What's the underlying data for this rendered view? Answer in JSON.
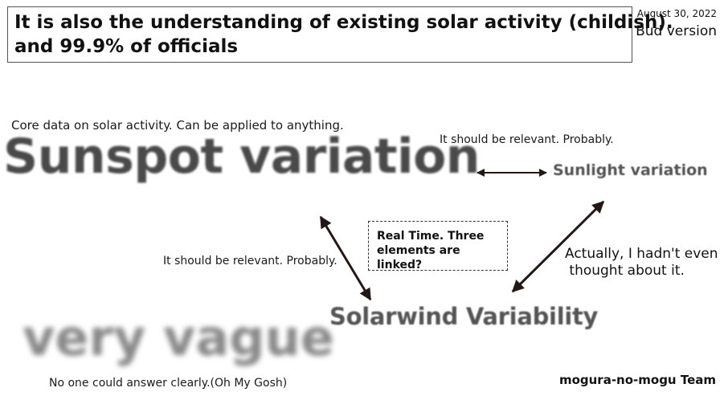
{
  "header": {
    "title_line1": "It is also the understanding of existing solar activity (childish).",
    "title_line2": "and 99.9% of officials",
    "date": "August 30, 2022",
    "version": "Bud version"
  },
  "diagram": {
    "core_note": "Core data on solar activity. Can be applied to anything.",
    "sunspot": "Sunspot variation",
    "relevant_top": "It should be relevant. Probably.",
    "sunlight": "Sunlight variation",
    "realtime": "Real Time. Three elements are linked?",
    "relevant_left": "It should be relevant. Probably.",
    "actually": "Actually, I hadn't even\n thought about it.",
    "solarwind": "Solarwind Variability",
    "vague": "very vague",
    "no_one": "No one could answer clearly.(Oh My Gosh)"
  },
  "footer": {
    "team": "mogura-no-mogu Team"
  },
  "colors": {
    "arrow": "#231815",
    "border": "#555555"
  }
}
